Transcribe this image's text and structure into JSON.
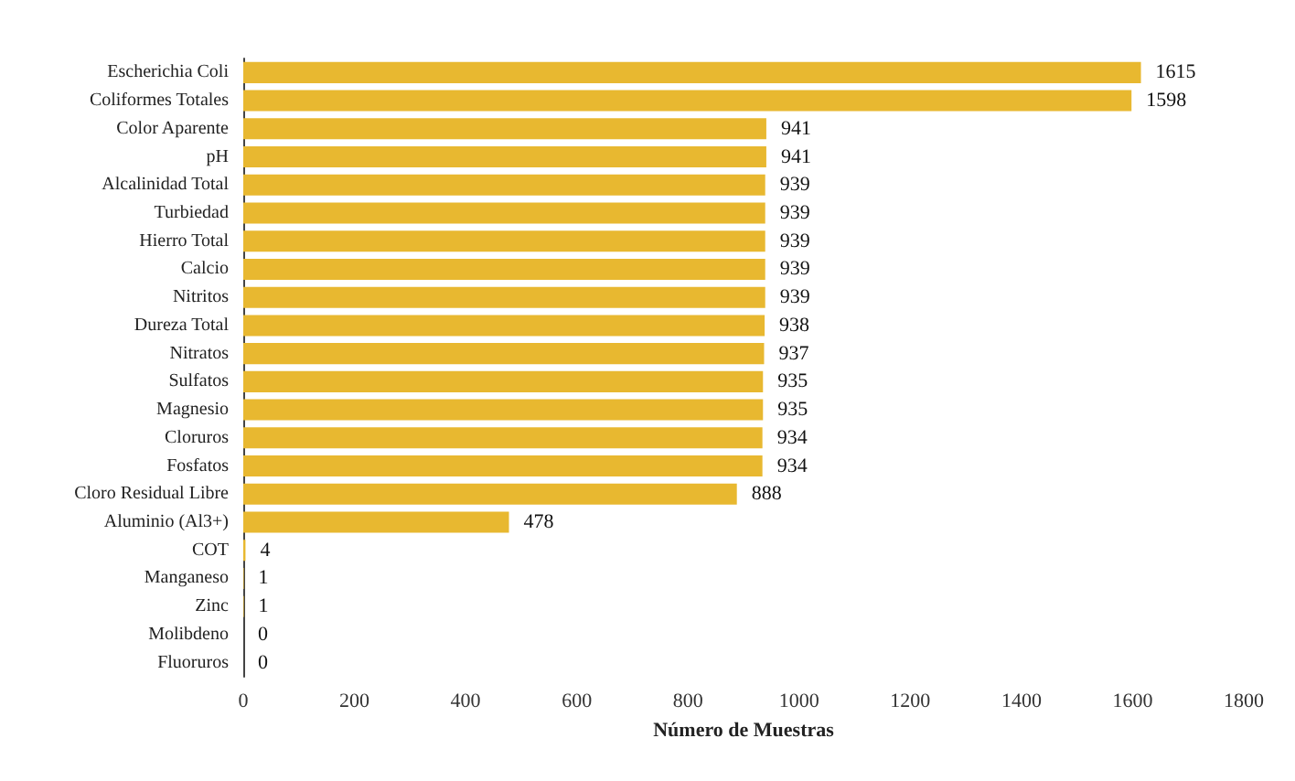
{
  "chart_data": {
    "type": "bar",
    "orientation": "horizontal",
    "xlabel": "Número de Muestras",
    "categories": [
      "Escherichia Coli",
      "Coliformes Totales",
      "Color Aparente",
      "pH",
      "Alcalinidad Total",
      "Turbiedad",
      "Hierro Total",
      "Calcio",
      "Nitritos",
      "Dureza Total",
      "Nitratos",
      "Sulfatos",
      "Magnesio",
      "Cloruros",
      "Fosfatos",
      "Cloro Residual Libre",
      "Aluminio (Al3+)",
      "COT",
      "Manganeso",
      "Zinc",
      "Molibdeno",
      "Fluoruros"
    ],
    "values": [
      1615,
      1598,
      941,
      941,
      939,
      939,
      939,
      939,
      939,
      938,
      937,
      935,
      935,
      934,
      934,
      888,
      478,
      4,
      1,
      1,
      0,
      0
    ],
    "color": "#e8b830",
    "data_labels": true,
    "xlim": [
      0,
      1800
    ],
    "xticks": [
      0,
      200,
      400,
      600,
      800,
      1000,
      1200,
      1400,
      1600,
      1800
    ],
    "grid": false
  }
}
